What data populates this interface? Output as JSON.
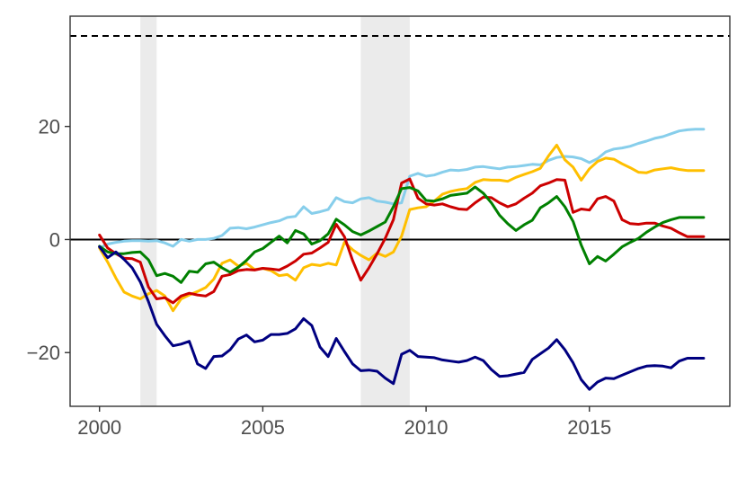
{
  "chart_data": {
    "type": "line",
    "title": "",
    "xlabel": "",
    "ylabel": "",
    "xlim": [
      1999.1,
      2019.3
    ],
    "ylim": [
      -29.5,
      39.5
    ],
    "x_ticks": [
      2000,
      2005,
      2010,
      2015
    ],
    "x_tick_labels": [
      "2000",
      "2005",
      "2010",
      "2015"
    ],
    "y_ticks": [
      -20,
      0,
      20
    ],
    "y_tick_labels": [
      "−20",
      "0",
      "20"
    ],
    "grid": false,
    "legend": "none",
    "reference_lines": [
      {
        "y": 0,
        "style": "solid",
        "color": "#000000"
      },
      {
        "y": 36,
        "style": "dashed",
        "color": "#000000"
      }
    ],
    "shaded_periods": [
      {
        "x0": 2001.25,
        "x1": 2001.75,
        "color": "#ebebeb"
      },
      {
        "x0": 2008.0,
        "x1": 2009.5,
        "color": "#ebebeb"
      }
    ],
    "x": [
      2000.0,
      2000.25,
      2000.5,
      2000.75,
      2001.0,
      2001.25,
      2001.5,
      2001.75,
      2002.0,
      2002.25,
      2002.5,
      2002.75,
      2003.0,
      2003.25,
      2003.5,
      2003.75,
      2004.0,
      2004.25,
      2004.5,
      2004.75,
      2005.0,
      2005.25,
      2005.5,
      2005.75,
      2006.0,
      2006.25,
      2006.5,
      2006.75,
      2007.0,
      2007.25,
      2007.5,
      2007.75,
      2008.0,
      2008.25,
      2008.5,
      2008.75,
      2009.0,
      2009.25,
      2009.5,
      2009.75,
      2010.0,
      2010.25,
      2010.5,
      2010.75,
      2011.0,
      2011.25,
      2011.5,
      2011.75,
      2012.0,
      2012.25,
      2012.5,
      2012.75,
      2013.0,
      2013.25,
      2013.5,
      2013.75,
      2014.0,
      2014.25,
      2014.5,
      2014.75,
      2015.0,
      2015.25,
      2015.5,
      2015.75,
      2016.0,
      2016.25,
      2016.5,
      2016.75,
      2017.0,
      2017.25,
      2017.5,
      2017.75,
      2018.0,
      2018.25,
      2018.5
    ],
    "series": [
      {
        "color": "#87ceeb",
        "values": [
          -1.5,
          -0.8,
          -0.5,
          -0.3,
          -0.2,
          -0.2,
          -0.3,
          -0.2,
          -0.6,
          -1.2,
          0.0,
          -0.3,
          0.0,
          0.0,
          0.2,
          0.7,
          2.0,
          2.1,
          1.9,
          2.2,
          2.6,
          3.0,
          3.3,
          3.9,
          4.1,
          5.8,
          4.6,
          4.9,
          5.3,
          7.4,
          6.7,
          6.5,
          7.2,
          7.4,
          6.8,
          6.6,
          6.3,
          6.5,
          11.2,
          11.7,
          11.2,
          11.4,
          11.9,
          12.3,
          12.2,
          12.4,
          12.8,
          12.9,
          12.7,
          12.5,
          12.8,
          12.9,
          13.1,
          13.3,
          13.2,
          14.0,
          14.5,
          14.7,
          14.6,
          14.3,
          13.6,
          14.3,
          15.5,
          16.0,
          16.2,
          16.5,
          17.0,
          17.4,
          17.9,
          18.2,
          18.7,
          19.2,
          19.4,
          19.5,
          19.5
        ]
      },
      {
        "color": "#ffbf00",
        "values": [
          -1.5,
          -4.0,
          -6.8,
          -9.3,
          -10.0,
          -10.5,
          -9.6,
          -9.0,
          -10.0,
          -12.6,
          -10.5,
          -9.8,
          -9.2,
          -8.5,
          -7.0,
          -4.2,
          -3.6,
          -4.7,
          -4.2,
          -5.3,
          -5.1,
          -5.5,
          -6.4,
          -6.2,
          -7.2,
          -5.0,
          -4.4,
          -4.6,
          -4.2,
          -4.5,
          -0.5,
          -1.8,
          -2.8,
          -3.6,
          -2.4,
          -3.0,
          -2.2,
          0.6,
          5.3,
          5.6,
          5.8,
          6.8,
          8.0,
          8.5,
          8.8,
          9.0,
          10.1,
          10.6,
          10.5,
          10.5,
          10.3,
          11.0,
          11.5,
          12.0,
          12.6,
          14.8,
          16.7,
          14.1,
          12.8,
          10.5,
          12.5,
          13.8,
          14.4,
          14.2,
          13.4,
          12.7,
          11.9,
          11.8,
          12.3,
          12.5,
          12.7,
          12.4,
          12.2,
          12.2,
          12.2
        ]
      },
      {
        "color": "#cc0000",
        "values": [
          0.8,
          -1.5,
          -2.5,
          -3.3,
          -3.4,
          -4.0,
          -8.4,
          -10.5,
          -10.3,
          -11.2,
          -10.0,
          -9.5,
          -9.8,
          -10.0,
          -9.2,
          -6.5,
          -6.2,
          -5.5,
          -5.3,
          -5.4,
          -5.1,
          -5.2,
          -5.4,
          -4.7,
          -3.8,
          -2.6,
          -2.4,
          -1.5,
          -0.5,
          2.7,
          0.5,
          -3.7,
          -7.2,
          -5.0,
          -2.5,
          0.2,
          3.5,
          10.0,
          10.7,
          7.3,
          6.3,
          6.1,
          6.3,
          5.8,
          5.4,
          5.3,
          6.5,
          7.5,
          7.4,
          6.5,
          5.8,
          6.3,
          7.3,
          8.2,
          9.5,
          10.0,
          10.6,
          10.5,
          4.8,
          5.4,
          5.2,
          7.2,
          7.6,
          6.8,
          3.5,
          2.8,
          2.7,
          2.9,
          2.9,
          2.4,
          2.0,
          1.2,
          0.5,
          0.5,
          0.5
        ]
      },
      {
        "color": "#008000",
        "values": [
          -1.2,
          -2.2,
          -2.5,
          -2.5,
          -2.3,
          -2.2,
          -3.6,
          -6.4,
          -6.0,
          -6.5,
          -7.6,
          -5.6,
          -5.8,
          -4.3,
          -4.0,
          -5.0,
          -5.8,
          -4.9,
          -3.7,
          -2.2,
          -1.6,
          -0.5,
          0.6,
          -0.6,
          1.6,
          1.0,
          -0.8,
          -0.2,
          1.0,
          3.6,
          2.6,
          1.4,
          0.8,
          1.5,
          2.3,
          3.1,
          5.8,
          9.0,
          9.2,
          8.6,
          6.9,
          6.8,
          7.2,
          7.8,
          8.0,
          8.2,
          9.3,
          8.2,
          6.5,
          4.3,
          2.8,
          1.6,
          2.6,
          3.4,
          5.6,
          6.5,
          7.6,
          5.8,
          3.2,
          -1.0,
          -4.3,
          -3.0,
          -3.8,
          -2.6,
          -1.3,
          -0.5,
          0.2,
          1.3,
          2.2,
          3.0,
          3.5,
          3.9,
          3.9,
          3.9,
          3.9
        ]
      },
      {
        "color": "#000080",
        "values": [
          -1.3,
          -3.2,
          -2.2,
          -3.5,
          -5.0,
          -7.5,
          -11.0,
          -15.0,
          -17.0,
          -18.8,
          -18.5,
          -18.0,
          -22.0,
          -22.8,
          -20.7,
          -20.6,
          -19.5,
          -17.6,
          -16.9,
          -18.1,
          -17.8,
          -16.8,
          -16.8,
          -16.6,
          -15.8,
          -14.0,
          -15.2,
          -19.0,
          -20.7,
          -17.5,
          -19.8,
          -22.0,
          -23.2,
          -23.1,
          -23.3,
          -24.5,
          -25.5,
          -20.3,
          -19.6,
          -20.7,
          -20.8,
          -20.9,
          -21.3,
          -21.5,
          -21.7,
          -21.4,
          -20.8,
          -21.4,
          -23.0,
          -24.2,
          -24.1,
          -23.8,
          -23.5,
          -21.2,
          -20.2,
          -19.2,
          -17.7,
          -19.5,
          -21.8,
          -24.8,
          -26.5,
          -25.2,
          -24.5,
          -24.6,
          -24.0,
          -23.4,
          -22.8,
          -22.4,
          -22.3,
          -22.4,
          -22.7,
          -21.5,
          -21.0,
          -21.0,
          -21.0
        ]
      }
    ]
  }
}
